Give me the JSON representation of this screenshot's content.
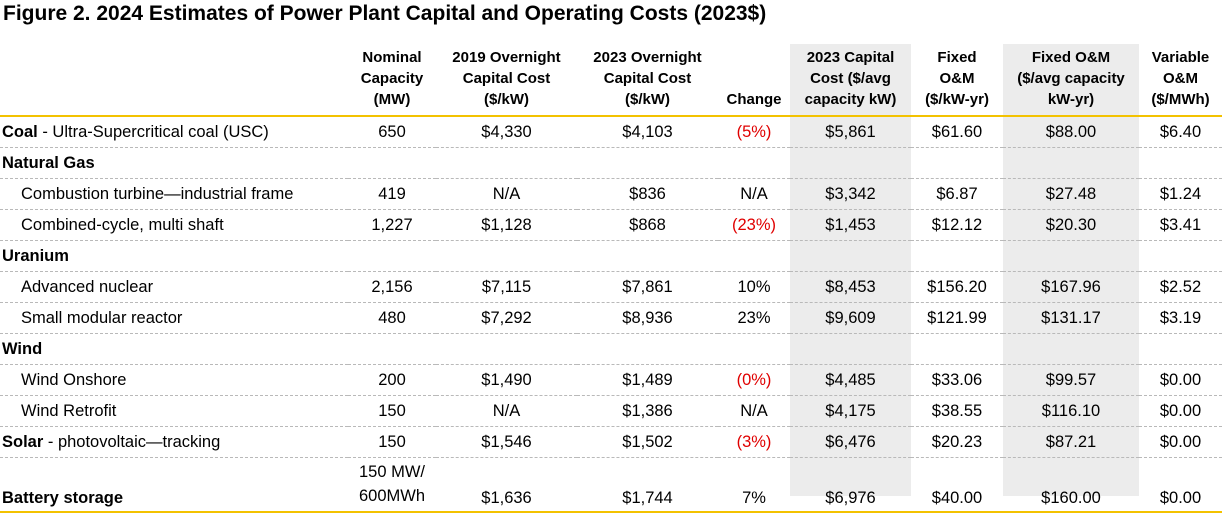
{
  "title": "Figure 2. 2024 Estimates of Power Plant Capital and Operating Costs (2023$)",
  "chart_data": {
    "type": "table",
    "columns": [
      "",
      "Nominal Capacity (MW)",
      "2019 Overnight Capital Cost ($/kW)",
      "2023 Overnight Capital Cost ($/kW)",
      "Change",
      "2023 Capital Cost ($/avg capacity kW)",
      "Fixed O&M ($/kW-yr)",
      "Fixed O&M ($/avg capacity kW-yr)",
      "Variable O&M ($/MWh)"
    ],
    "header_lines": [
      [
        ""
      ],
      [
        "Nominal",
        "Capacity",
        "(MW)"
      ],
      [
        "2019 Overnight",
        "Capital Cost",
        "($/kW)"
      ],
      [
        "2023 Overnight",
        "Capital Cost",
        "($/kW)"
      ],
      [
        "Change"
      ],
      [
        "2023 Capital",
        "Cost ($/avg",
        "capacity kW)"
      ],
      [
        "Fixed",
        "O&M",
        "($/kW-yr)"
      ],
      [
        "Fixed O&M",
        "($/avg capacity",
        "kW-yr)"
      ],
      [
        "Variable",
        "O&M",
        "($/MWh)"
      ]
    ],
    "rows": [
      {
        "kind": "data-cat",
        "bold": "Coal",
        "rest": " - Ultra-Supercritical coal (USC)",
        "capacity": "650",
        "c2019": "$4,330",
        "c2023": "$4,103",
        "change": "(5%)",
        "negative": true,
        "capavg": "$5,861",
        "fom": "$61.60",
        "fomavg": "$88.00",
        "vom": "$6.40"
      },
      {
        "kind": "cat",
        "bold": "Natural Gas",
        "rest": ""
      },
      {
        "kind": "sub",
        "label": "Combustion turbine—industrial frame",
        "capacity": "419",
        "c2019": "N/A",
        "c2023": "$836",
        "change": "N/A",
        "negative": false,
        "capavg": "$3,342",
        "fom": "$6.87",
        "fomavg": "$27.48",
        "vom": "$1.24"
      },
      {
        "kind": "sub",
        "label": "Combined-cycle, multi shaft",
        "capacity": "1,227",
        "c2019": "$1,128",
        "c2023": "$868",
        "change": "(23%)",
        "negative": true,
        "capavg": "$1,453",
        "fom": "$12.12",
        "fomavg": "$20.30",
        "vom": "$3.41"
      },
      {
        "kind": "cat",
        "bold": "Uranium",
        "rest": ""
      },
      {
        "kind": "sub",
        "label": "Advanced nuclear",
        "capacity": "2,156",
        "c2019": "$7,115",
        "c2023": "$7,861",
        "change": "10%",
        "negative": false,
        "capavg": "$8,453",
        "fom": "$156.20",
        "fomavg": "$167.96",
        "vom": "$2.52"
      },
      {
        "kind": "sub",
        "label": "Small modular reactor",
        "capacity": "480",
        "c2019": "$7,292",
        "c2023": "$8,936",
        "change": "23%",
        "negative": false,
        "capavg": "$9,609",
        "fom": "$121.99",
        "fomavg": "$131.17",
        "vom": "$3.19"
      },
      {
        "kind": "cat",
        "bold": "Wind",
        "rest": ""
      },
      {
        "kind": "sub",
        "label": "Wind Onshore",
        "capacity": "200",
        "c2019": "$1,490",
        "c2023": "$1,489",
        "change": "(0%)",
        "negative": true,
        "capavg": "$4,485",
        "fom": "$33.06",
        "fomavg": "$99.57",
        "vom": "$0.00"
      },
      {
        "kind": "sub",
        "label": "Wind Retrofit",
        "capacity": "150",
        "c2019": "N/A",
        "c2023": "$1,386",
        "change": "N/A",
        "negative": false,
        "capavg": "$4,175",
        "fom": "$38.55",
        "fomavg": "$116.10",
        "vom": "$0.00"
      },
      {
        "kind": "data-cat",
        "bold": "Solar",
        "rest": " - photovoltaic—tracking",
        "capacity": "150",
        "c2019": "$1,546",
        "c2023": "$1,502",
        "change": "(3%)",
        "negative": true,
        "capavg": "$6,476",
        "fom": "$20.23",
        "fomavg": "$87.21",
        "vom": "$0.00"
      },
      {
        "kind": "last",
        "bold": "Battery storage",
        "rest": "",
        "capacity_lines": [
          "150 MW/",
          "600MWh"
        ],
        "c2019": "$1,636",
        "c2023": "$1,744",
        "change": "7%",
        "negative": false,
        "capavg": "$6,976",
        "fom": "$40.00",
        "fomavg": "$160.00",
        "vom": "$0.00"
      }
    ]
  }
}
